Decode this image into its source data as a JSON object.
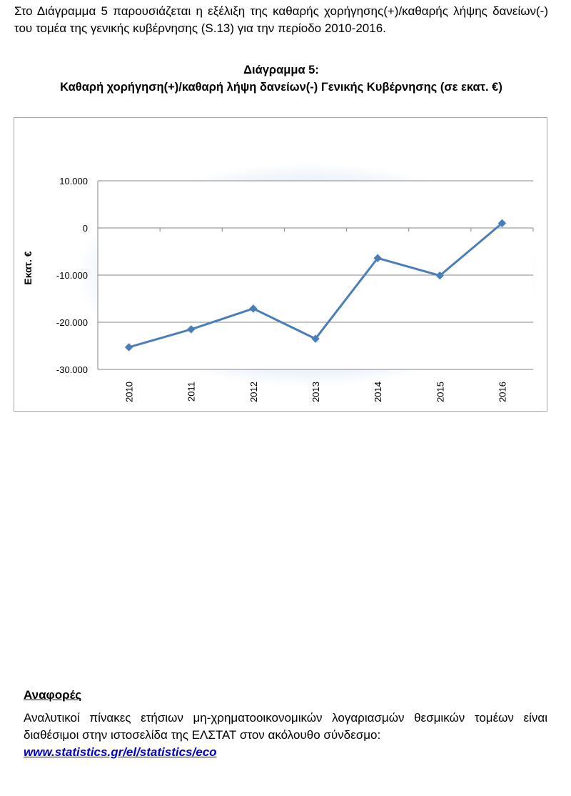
{
  "intro_text": "Στο Διάγραμμα 5 παρουσιάζεται η εξέλιξη της καθαρής χορήγησης(+)/καθαρής λήψης δανείων(-) του τομέα της γενικής κυβέρνησης (S.13) για την περίοδο 2010-2016.",
  "chart_heading": {
    "line1": "Διάγραμμα 5:",
    "line2": "Καθαρή χορήγηση(+)/καθαρή λήψη δανείων(-) Γενικής Κυβέρνησης (σε εκατ. €)"
  },
  "chart_data": {
    "type": "line",
    "title": "Διάγραμμα 5: Καθαρή χορήγηση(+)/καθαρή λήψη δανείων(-) Γενικής Κυβέρνησης (σε εκατ. €)",
    "xlabel": "",
    "ylabel": "Εκατ. €",
    "categories": [
      "2010",
      "2011",
      "2012",
      "2013",
      "2014",
      "2015",
      "2016"
    ],
    "series": [
      {
        "values": [
          -25300,
          -21500,
          -17100,
          -23500,
          -6400,
          -10100,
          1000
        ]
      }
    ],
    "ylim": [
      -30000,
      10000
    ],
    "yticks": [
      10000,
      0,
      -10000,
      -20000,
      -30000
    ],
    "ytick_labels": [
      "10.000",
      "0",
      "-10.000",
      "-20.000",
      "-30.000"
    ],
    "grid": true,
    "colors": {
      "line": "#4a7ebb",
      "gridline": "#868686",
      "frame": "#a6a6a6",
      "glow": "#c6d9f1"
    }
  },
  "references": {
    "title": "Αναφορές",
    "text": "Αναλυτικοί πίνακες ετήσιων μη-χρηματοοικονομικών λογαριασμών θεσμικών τομέων είναι διαθέσιμοι στην ιστοσελίδα της ΕΛΣΤΑΤ στον ακόλουθο σύνδεσμο:",
    "link": "www.statistics.gr/el/statistics/eco"
  }
}
